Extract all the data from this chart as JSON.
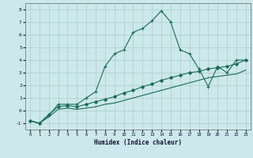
{
  "xlabel": "Humidex (Indice chaleur)",
  "ylabel": "",
  "bg_color": "#cce8ec",
  "grid_color": "#aacccc",
  "line_color": "#1a6b5a",
  "xlim": [
    -0.5,
    23.5
  ],
  "ylim": [
    -1.5,
    8.5
  ],
  "xticks": [
    0,
    1,
    2,
    3,
    4,
    5,
    6,
    7,
    8,
    9,
    10,
    11,
    12,
    13,
    14,
    15,
    16,
    17,
    18,
    19,
    20,
    21,
    22,
    23
  ],
  "yticks": [
    -1,
    0,
    1,
    2,
    3,
    4,
    5,
    6,
    7,
    8
  ],
  "curve1_x": [
    0,
    1,
    2,
    3,
    4,
    5,
    6,
    7,
    8,
    9,
    10,
    11,
    12,
    13,
    14,
    15,
    16,
    17,
    18,
    19,
    20,
    21,
    22,
    23
  ],
  "curve1_y": [
    -0.8,
    -1.0,
    -0.4,
    0.5,
    0.5,
    0.5,
    1.0,
    1.5,
    3.5,
    4.5,
    4.8,
    6.2,
    6.5,
    7.1,
    7.9,
    7.0,
    4.8,
    4.5,
    3.3,
    1.9,
    3.5,
    3.0,
    4.0,
    4.0
  ],
  "curve2_x": [
    0,
    1,
    2,
    3,
    4,
    5,
    6,
    7,
    8,
    9,
    10,
    11,
    12,
    13,
    14,
    15,
    16,
    17,
    18,
    19,
    20,
    21,
    22,
    23
  ],
  "curve2_y": [
    -0.8,
    -1.0,
    -0.3,
    0.3,
    0.4,
    0.3,
    0.5,
    0.7,
    0.9,
    1.1,
    1.4,
    1.6,
    1.9,
    2.1,
    2.4,
    2.6,
    2.8,
    3.0,
    3.1,
    3.3,
    3.4,
    3.5,
    3.7,
    4.0
  ],
  "curve3_x": [
    0,
    1,
    2,
    3,
    4,
    5,
    6,
    7,
    8,
    9,
    10,
    11,
    12,
    13,
    14,
    15,
    16,
    17,
    18,
    19,
    20,
    21,
    22,
    23
  ],
  "curve3_y": [
    -0.8,
    -1.0,
    -0.5,
    0.1,
    0.2,
    0.1,
    0.2,
    0.3,
    0.5,
    0.6,
    0.8,
    1.0,
    1.2,
    1.4,
    1.6,
    1.8,
    2.0,
    2.2,
    2.4,
    2.6,
    2.7,
    2.8,
    2.9,
    3.2
  ]
}
